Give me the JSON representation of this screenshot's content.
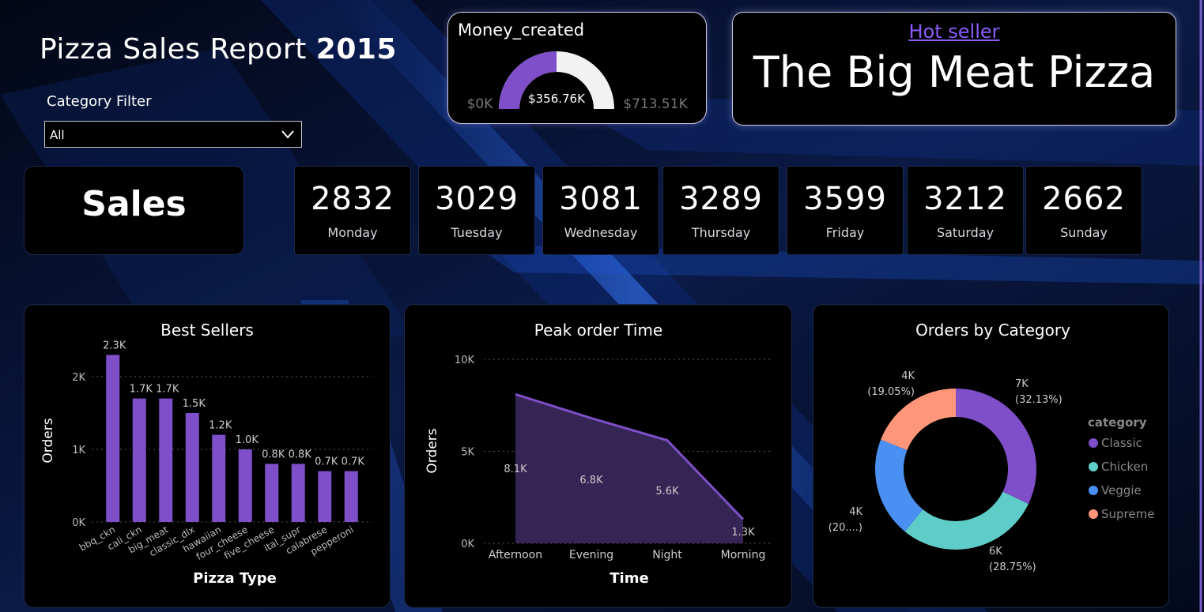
{
  "header": {
    "title_main": "Pizza Sales Report ",
    "title_year": "2015"
  },
  "filter": {
    "label": "Category Filter",
    "selected": "All"
  },
  "gauge": {
    "title": "Money_created",
    "value": 356.76,
    "max": 713.51,
    "value_label": "$356.76K",
    "min_label": "$0K",
    "max_label": "$713.51K",
    "fill_color": "#7e4fc8",
    "track_color": "#f2f2f2"
  },
  "hot_seller": {
    "label": "Hot seller",
    "value": "The Big Meat Pizza"
  },
  "sales": {
    "label": "Sales",
    "days": [
      {
        "value": "2832",
        "day": "Monday"
      },
      {
        "value": "3029",
        "day": "Tuesday"
      },
      {
        "value": "3081",
        "day": "Wednesday"
      },
      {
        "value": "3289",
        "day": "Thursday"
      },
      {
        "value": "3599",
        "day": "Friday"
      },
      {
        "value": "3212",
        "day": "Saturday"
      },
      {
        "value": "2662",
        "day": "Sunday"
      }
    ]
  },
  "chart_data": [
    {
      "type": "bar",
      "title": "Best Sellers",
      "xlabel": "Pizza Type",
      "ylabel": "Orders",
      "categories": [
        "bbq_ckn",
        "cali_ckn",
        "big_meat",
        "classic_dlx",
        "hawaiian",
        "four_cheese",
        "five_cheese",
        "ital_supr",
        "calabrese",
        "pepperoni"
      ],
      "values": [
        2300,
        1700,
        1700,
        1500,
        1200,
        1000,
        800,
        800,
        700,
        700
      ],
      "data_labels": [
        "2.3K",
        "1.7K",
        "1.7K",
        "1.5K",
        "1.2K",
        "1.0K",
        "0.8K",
        "0.8K",
        "0.7K",
        "0.7K"
      ],
      "yticks": [
        "0K",
        "1K",
        "2K"
      ],
      "ylim": [
        0,
        2500
      ],
      "color": "#7e4fc8",
      "grid": true
    },
    {
      "type": "area",
      "title": "Peak order Time",
      "xlabel": "Time",
      "ylabel": "Orders",
      "categories": [
        "Afternoon",
        "Evening",
        "Night",
        "Morning"
      ],
      "values": [
        8100,
        6800,
        5600,
        1300
      ],
      "data_labels": [
        "8.1K",
        "6.8K",
        "5.6K",
        "1.3K"
      ],
      "yticks": [
        "0K",
        "5K",
        "10K"
      ],
      "ylim": [
        0,
        10000
      ],
      "color": "#7e4fc8",
      "fill_color": "#352555",
      "grid": true
    },
    {
      "type": "pie",
      "title": "Orders by Category",
      "legend_title": "category",
      "legend_position": "right",
      "slices": [
        {
          "name": "Classic",
          "value": 32.13,
          "label": "7K",
          "pct": "(32.13%)",
          "color": "#7e4fc8"
        },
        {
          "name": "Chicken",
          "value": 28.75,
          "label": "6K",
          "pct": "(28.75%)",
          "color": "#5ecdc8"
        },
        {
          "name": "Veggie",
          "value": 20.07,
          "label": "4K",
          "pct": "(20....)",
          "color": "#4a90f2"
        },
        {
          "name": "Supreme",
          "value": 19.05,
          "label": "4K",
          "pct": "(19.05%)",
          "color": "#ff967a"
        }
      ]
    }
  ]
}
